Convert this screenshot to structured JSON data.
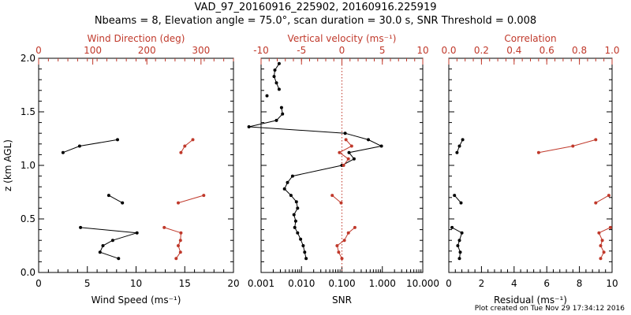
{
  "title_line1": "VAD_97_20160916_225902, 20160916.225919",
  "title_line2": "Nbeams = 8, Elevation angle = 75.0°, scan duration = 30.0 s, SNR Threshold = 0.008",
  "footer": "Plot created on Tue Nov 29 17:34:12 2016",
  "colors": {
    "primary": "#000000",
    "secondary": "#c0392b"
  },
  "chart_data": [
    {
      "type": "line",
      "ylabel": "z (km AGL)",
      "ylim": [
        0,
        2.0
      ],
      "yticks": [
        "0.0",
        "0.5",
        "1.0",
        "1.5",
        "2.0"
      ],
      "xlabel": "Wind Speed (ms⁻¹)",
      "xlim": [
        0,
        20
      ],
      "xticks": [
        "0",
        "5",
        "10",
        "15",
        "20"
      ],
      "top_xlabel": "Wind Direction (deg)",
      "top_xlim": [
        0,
        360
      ],
      "top_xticks": [
        "0",
        "100",
        "200",
        "300"
      ],
      "series": [
        {
          "axis": "bottom",
          "segments": [
            [
              [
                2.5,
                1.12
              ],
              [
                4.2,
                1.18
              ],
              [
                8.1,
                1.24
              ]
            ],
            [
              [
                7.2,
                0.72
              ],
              [
                8.6,
                0.65
              ]
            ],
            [
              [
                4.3,
                0.42
              ],
              [
                10.1,
                0.37
              ],
              [
                7.6,
                0.3
              ],
              [
                6.6,
                0.25
              ],
              [
                6.3,
                0.19
              ],
              [
                8.2,
                0.13
              ]
            ]
          ]
        },
        {
          "axis": "top",
          "segments": [
            [
              [
                263,
                1.12
              ],
              [
                270,
                1.18
              ],
              [
                285,
                1.24
              ]
            ],
            [
              [
                258,
                0.65
              ],
              [
                305,
                0.72
              ]
            ],
            [
              [
                232,
                0.42
              ],
              [
                263,
                0.37
              ],
              [
                262,
                0.3
              ],
              [
                258,
                0.25
              ],
              [
                262,
                0.19
              ],
              [
                254,
                0.13
              ]
            ]
          ]
        }
      ]
    },
    {
      "type": "line",
      "ylim": [
        0,
        2.0
      ],
      "xlabel": "SNR",
      "xscale": "log",
      "xlim": [
        0.001,
        10
      ],
      "xticks": [
        "0.001",
        "0.010",
        "0.100",
        "1.000",
        "10.000"
      ],
      "top_xlabel": "Vertical velocity (ms⁻¹)",
      "top_xlim": [
        -10,
        10
      ],
      "top_xticks": [
        "-10",
        "-5",
        "0",
        "5",
        "10"
      ],
      "zero_line": 0,
      "series": [
        {
          "axis": "bottom",
          "segments": [
            [
              [
                0.0028,
                1.95
              ],
              [
                0.0022,
                1.89
              ],
              [
                0.0021,
                1.83
              ],
              [
                0.0024,
                1.77
              ],
              [
                0.0028,
                1.71
              ]
            ],
            [
              [
                0.0014,
                1.65
              ]
            ],
            [
              [
                0.0032,
                1.54
              ],
              [
                0.0034,
                1.48
              ],
              [
                0.0024,
                1.42
              ],
              [
                0.0005,
                1.36
              ],
              [
                0.12,
                1.3
              ],
              [
                0.45,
                1.24
              ],
              [
                0.95,
                1.18
              ],
              [
                0.15,
                1.12
              ],
              [
                0.2,
                1.06
              ],
              [
                0.1,
                1.0
              ],
              [
                0.006,
                0.9
              ],
              [
                0.0045,
                0.84
              ],
              [
                0.0038,
                0.78
              ],
              [
                0.0055,
                0.72
              ],
              [
                0.0075,
                0.66
              ],
              [
                0.008,
                0.6
              ],
              [
                0.0065,
                0.54
              ],
              [
                0.0072,
                0.48
              ],
              [
                0.0068,
                0.42
              ],
              [
                0.008,
                0.37
              ],
              [
                0.0095,
                0.31
              ],
              [
                0.011,
                0.25
              ],
              [
                0.012,
                0.19
              ],
              [
                0.013,
                0.13
              ]
            ]
          ]
        },
        {
          "axis": "top",
          "segments": [
            [
              [
                0.5,
                1.24
              ],
              [
                1.2,
                1.18
              ],
              [
                -0.3,
                1.12
              ],
              [
                0.8,
                1.06
              ],
              [
                0.2,
                1.0
              ]
            ],
            [
              [
                -1.2,
                0.72
              ],
              [
                -0.1,
                0.65
              ]
            ],
            [
              [
                1.6,
                0.42
              ],
              [
                0.8,
                0.37
              ],
              [
                0.3,
                0.3
              ],
              [
                -0.6,
                0.25
              ],
              [
                -0.4,
                0.19
              ],
              [
                0.0,
                0.13
              ]
            ]
          ]
        }
      ]
    },
    {
      "type": "line",
      "ylim": [
        0,
        2.0
      ],
      "xlabel": "Residual (ms⁻¹)",
      "xlim": [
        0,
        10
      ],
      "xticks": [
        "0",
        "2",
        "4",
        "6",
        "8",
        "10"
      ],
      "top_xlabel": "Correlation",
      "top_xlim": [
        0,
        1
      ],
      "top_xticks": [
        "0.0",
        "0.2",
        "0.4",
        "0.6",
        "0.8",
        "1.0"
      ],
      "series": [
        {
          "axis": "bottom",
          "segments": [
            [
              [
                0.5,
                1.12
              ],
              [
                0.65,
                1.18
              ],
              [
                0.85,
                1.24
              ]
            ],
            [
              [
                0.35,
                0.72
              ],
              [
                0.75,
                0.65
              ]
            ],
            [
              [
                0.2,
                0.42
              ],
              [
                0.8,
                0.37
              ],
              [
                0.65,
                0.3
              ],
              [
                0.55,
                0.25
              ],
              [
                0.7,
                0.19
              ],
              [
                0.65,
                0.13
              ]
            ]
          ]
        },
        {
          "axis": "top",
          "segments": [
            [
              [
                0.55,
                1.12
              ],
              [
                0.76,
                1.18
              ],
              [
                0.9,
                1.24
              ]
            ],
            [
              [
                0.9,
                0.65
              ],
              [
                0.98,
                0.72
              ]
            ],
            [
              [
                0.99,
                0.42
              ],
              [
                0.92,
                0.37
              ],
              [
                0.94,
                0.3
              ],
              [
                0.93,
                0.25
              ],
              [
                0.95,
                0.19
              ],
              [
                0.93,
                0.13
              ]
            ]
          ]
        }
      ]
    }
  ]
}
